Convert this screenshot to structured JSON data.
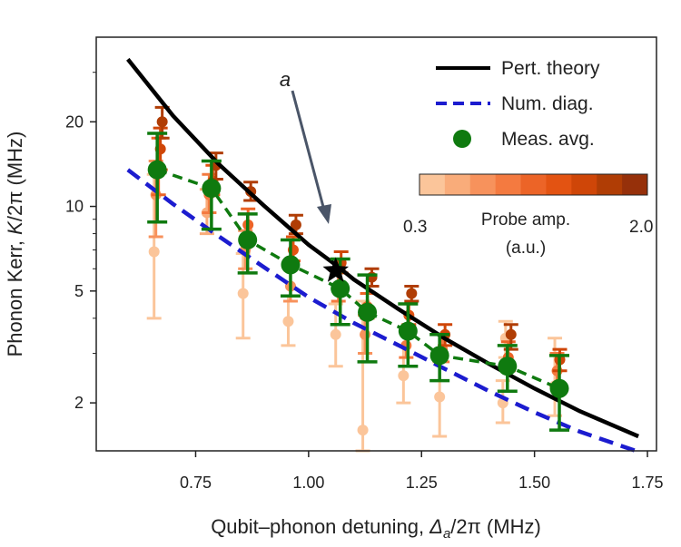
{
  "chart_data": {
    "type": "scatter",
    "xlabel_prefix": "Qubit–phonon detuning, ",
    "xlabel_symbol": "Δ",
    "xlabel_subscript": "a",
    "xlabel_suffix": "/2π (MHz)",
    "ylabel_prefix": "Phonon Kerr, ",
    "ylabel_symbol": "K",
    "ylabel_suffix": "/2π (MHz)",
    "x_scale": "linear",
    "y_scale": "log",
    "xlim": [
      0.53,
      1.77
    ],
    "ylim": [
      1.35,
      40
    ],
    "x_ticks": [
      0.75,
      1.0,
      1.25,
      1.5,
      1.75
    ],
    "x_tick_labels": [
      "0.75",
      "1.00",
      "1.25",
      "1.50",
      "1.75"
    ],
    "y_ticks": [
      2,
      5,
      10,
      20
    ],
    "y_tick_labels": [
      "2",
      "5",
      "10",
      "20"
    ],
    "annotation": {
      "text": "a",
      "point": [
        1.06,
        5.9
      ]
    },
    "legend": {
      "position": "top-right",
      "entries": [
        "Pert. theory",
        "Num. diag.",
        "Meas. avg."
      ]
    },
    "colorbar": {
      "label_line1": "Probe amp.",
      "label_line2": "(a.u.)",
      "min_label": "0.3",
      "max_label": "2.0",
      "colors": [
        "#fbc59a",
        "#f9ac7a",
        "#f7925c",
        "#f47a40",
        "#ec6427",
        "#e35312",
        "#cf4608",
        "#b03d05",
        "#96300a"
      ]
    },
    "series": [
      {
        "name": "Pert. theory",
        "color": "#000000",
        "style": "solid",
        "x": [
          0.6,
          0.7,
          0.8,
          0.9,
          1.0,
          1.06,
          1.1,
          1.2,
          1.3,
          1.4,
          1.5,
          1.6,
          1.73
        ],
        "y": [
          33.4,
          21.0,
          14.2,
          10.1,
          7.3,
          6.2,
          5.5,
          4.3,
          3.4,
          2.75,
          2.25,
          1.87,
          1.52
        ]
      },
      {
        "name": "Num. diag.",
        "color": "#1c1ccf",
        "style": "dashed",
        "x": [
          0.6,
          0.7,
          0.8,
          0.9,
          1.0,
          1.1,
          1.2,
          1.3,
          1.4,
          1.5,
          1.6,
          1.73
        ],
        "y": [
          13.5,
          10.2,
          7.85,
          6.1,
          4.75,
          3.85,
          3.2,
          2.65,
          2.2,
          1.85,
          1.58,
          1.34
        ]
      },
      {
        "name": "Meas. avg.",
        "color": "#0f7a0f",
        "style": "dashed-markers",
        "x": [
          0.665,
          0.785,
          0.865,
          0.96,
          1.07,
          1.13,
          1.22,
          1.29,
          1.44,
          1.555
        ],
        "y": [
          13.5,
          11.6,
          7.6,
          6.2,
          5.1,
          4.2,
          3.6,
          2.95,
          2.7,
          2.25
        ],
        "err_low": [
          8.8,
          8.3,
          5.8,
          4.8,
          3.8,
          2.8,
          2.7,
          2.4,
          2.2,
          1.6
        ],
        "err_high": [
          18.2,
          14.5,
          9.4,
          7.6,
          6.5,
          5.7,
          4.5,
          3.5,
          3.2,
          2.95
        ]
      }
    ],
    "probe_points": [
      {
        "x": 0.658,
        "y": 6.9,
        "lo": 4.0,
        "hi": 13.0,
        "c": 0
      },
      {
        "x": 0.662,
        "y": 11.0,
        "lo": 7.8,
        "hi": 14.5,
        "c": 2
      },
      {
        "x": 0.668,
        "y": 14.0,
        "lo": 11.0,
        "hi": 17.5,
        "c": 4
      },
      {
        "x": 0.672,
        "y": 16.0,
        "lo": 13.5,
        "hi": 19.0,
        "c": 6
      },
      {
        "x": 0.676,
        "y": 20.0,
        "lo": 17.5,
        "hi": 22.5,
        "c": 7
      },
      {
        "x": 0.775,
        "y": 9.5,
        "lo": 8.0,
        "hi": 11.5,
        "c": 1
      },
      {
        "x": 0.78,
        "y": 11.0,
        "lo": 9.5,
        "hi": 13.0,
        "c": 3
      },
      {
        "x": 0.788,
        "y": 12.3,
        "lo": 11.0,
        "hi": 14.0,
        "c": 5
      },
      {
        "x": 0.795,
        "y": 14.0,
        "lo": 12.5,
        "hi": 15.5,
        "c": 7
      },
      {
        "x": 0.855,
        "y": 4.9,
        "lo": 3.4,
        "hi": 6.8,
        "c": 0
      },
      {
        "x": 0.86,
        "y": 7.0,
        "lo": 6.0,
        "hi": 8.2,
        "c": 2
      },
      {
        "x": 0.866,
        "y": 8.6,
        "lo": 7.6,
        "hi": 9.8,
        "c": 4
      },
      {
        "x": 0.872,
        "y": 11.3,
        "lo": 10.5,
        "hi": 12.2,
        "c": 7
      },
      {
        "x": 0.955,
        "y": 3.9,
        "lo": 3.2,
        "hi": 4.8,
        "c": 0
      },
      {
        "x": 0.96,
        "y": 5.2,
        "lo": 4.6,
        "hi": 6.0,
        "c": 2
      },
      {
        "x": 0.966,
        "y": 7.0,
        "lo": 6.4,
        "hi": 7.8,
        "c": 5
      },
      {
        "x": 0.972,
        "y": 8.6,
        "lo": 8.0,
        "hi": 9.3,
        "c": 7
      },
      {
        "x": 1.06,
        "y": 3.5,
        "lo": 2.7,
        "hi": 4.5,
        "c": 0
      },
      {
        "x": 1.066,
        "y": 5.2,
        "lo": 4.6,
        "hi": 5.9,
        "c": 3
      },
      {
        "x": 1.072,
        "y": 6.3,
        "lo": 5.8,
        "hi": 6.9,
        "c": 6
      },
      {
        "x": 1.12,
        "y": 1.6,
        "lo": 1.35,
        "hi": 4.6,
        "c": 0
      },
      {
        "x": 1.125,
        "y": 3.5,
        "lo": 3.0,
        "hi": 4.1,
        "c": 2
      },
      {
        "x": 1.13,
        "y": 4.4,
        "lo": 4.0,
        "hi": 4.9,
        "c": 4
      },
      {
        "x": 1.14,
        "y": 5.6,
        "lo": 5.2,
        "hi": 6.0,
        "c": 7
      },
      {
        "x": 1.21,
        "y": 2.5,
        "lo": 2.0,
        "hi": 3.2,
        "c": 0
      },
      {
        "x": 1.216,
        "y": 3.2,
        "lo": 2.9,
        "hi": 3.6,
        "c": 3
      },
      {
        "x": 1.222,
        "y": 4.1,
        "lo": 3.8,
        "hi": 4.5,
        "c": 5
      },
      {
        "x": 1.228,
        "y": 4.9,
        "lo": 4.6,
        "hi": 5.2,
        "c": 7
      },
      {
        "x": 1.29,
        "y": 2.1,
        "lo": 1.52,
        "hi": 2.8,
        "c": 0
      },
      {
        "x": 1.296,
        "y": 3.1,
        "lo": 2.8,
        "hi": 3.5,
        "c": 3
      },
      {
        "x": 1.302,
        "y": 3.5,
        "lo": 3.2,
        "hi": 3.8,
        "c": 6
      },
      {
        "x": 1.43,
        "y": 2.0,
        "lo": 1.7,
        "hi": 2.4,
        "c": 0
      },
      {
        "x": 1.436,
        "y": 3.4,
        "lo": 2.9,
        "hi": 3.9,
        "c": 0
      },
      {
        "x": 1.442,
        "y": 2.9,
        "lo": 2.6,
        "hi": 3.3,
        "c": 4
      },
      {
        "x": 1.448,
        "y": 3.5,
        "lo": 3.1,
        "hi": 3.8,
        "c": 7
      },
      {
        "x": 1.545,
        "y": 2.3,
        "lo": 1.8,
        "hi": 3.4,
        "c": 0
      },
      {
        "x": 1.55,
        "y": 2.6,
        "lo": 2.3,
        "hi": 3.0,
        "c": 3
      },
      {
        "x": 1.556,
        "y": 2.85,
        "lo": 2.6,
        "hi": 3.1,
        "c": 6
      }
    ]
  }
}
